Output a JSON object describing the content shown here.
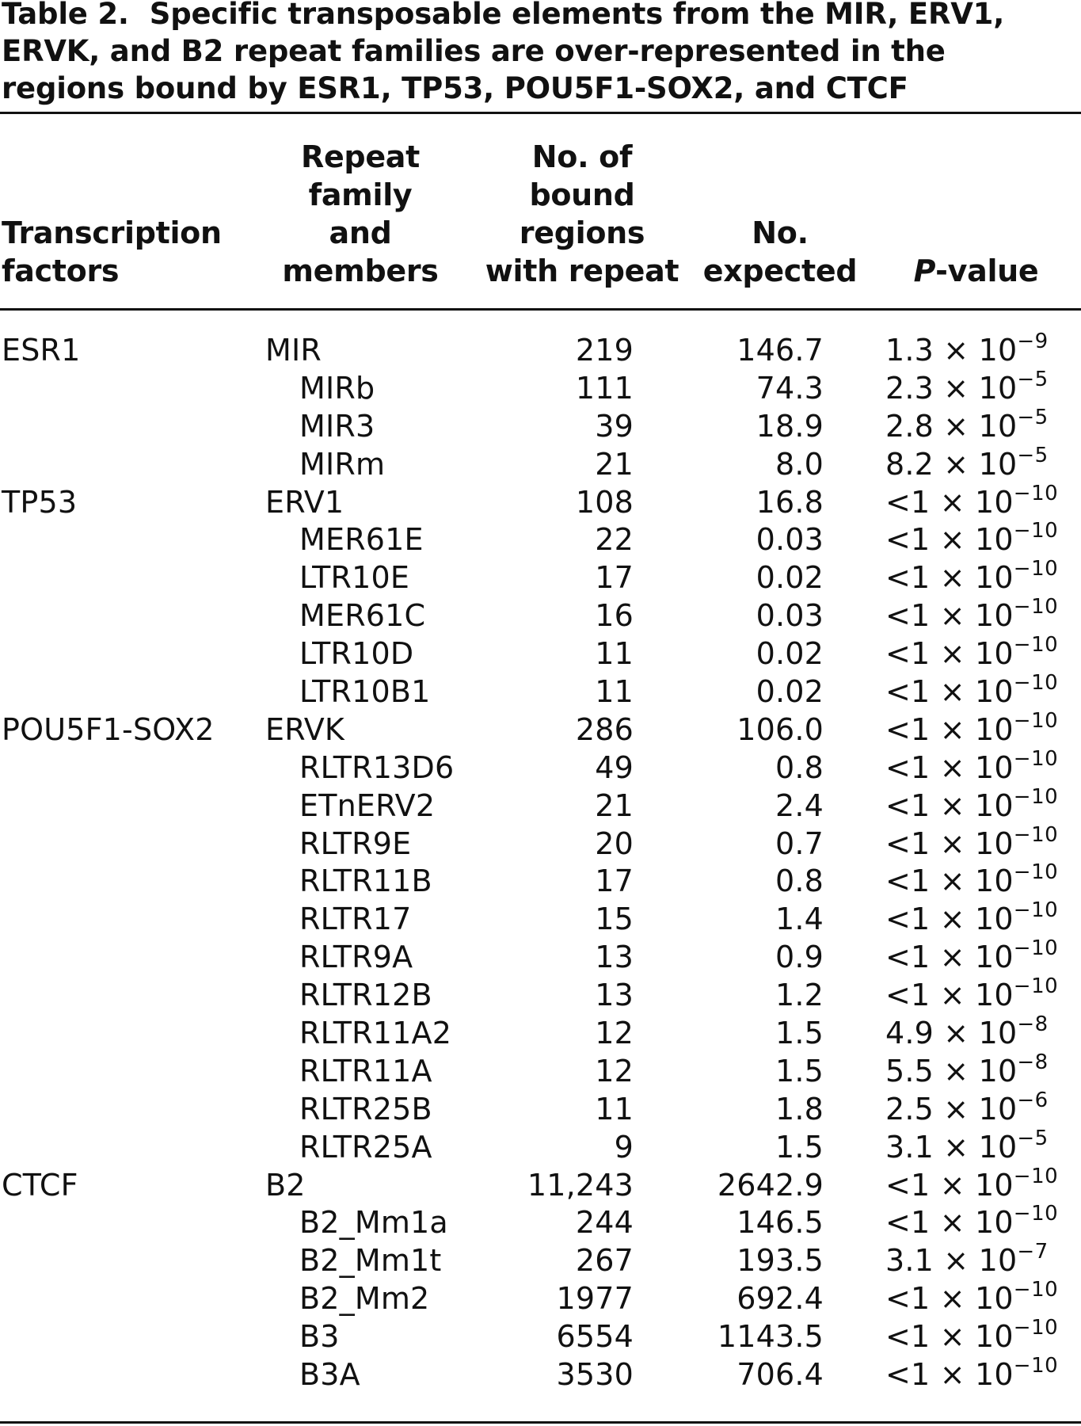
{
  "caption": {
    "label": "Table 2.",
    "text": "Specific transposable elements from the MIR, ERV1, ERVK, and B2 repeat families are over-represented in the regions bound by ESR1, TP53, POU5F1-SOX2, and CTCF"
  },
  "headers": {
    "tf_line1": "Transcription",
    "tf_line2": "factors",
    "fam_line1": "Repeat",
    "fam_line2": "family",
    "fam_line3": "and",
    "fam_line4": "members",
    "n_line1": "No. of",
    "n_line2": "bound",
    "n_line3": "regions",
    "n_line4": "with repeat",
    "exp_line1": "No.",
    "exp_line2": "expected",
    "p_italic": "P",
    "p_rest": "-value"
  },
  "rows": [
    {
      "tf": "ESR1",
      "family": "MIR",
      "member": false,
      "bound": "219",
      "expected": "146.7",
      "p_mant": "1.3 × 10",
      "p_exp": "−9"
    },
    {
      "tf": "",
      "family": "MIRb",
      "member": true,
      "bound": "111",
      "expected": "74.3",
      "p_mant": "2.3 × 10",
      "p_exp": "−5"
    },
    {
      "tf": "",
      "family": "MIR3",
      "member": true,
      "bound": "39",
      "expected": "18.9",
      "p_mant": "2.8 × 10",
      "p_exp": "−5"
    },
    {
      "tf": "",
      "family": "MIRm",
      "member": true,
      "bound": "21",
      "expected": "8.0",
      "p_mant": "8.2 × 10",
      "p_exp": "−5"
    },
    {
      "tf": "TP53",
      "family": "ERV1",
      "member": false,
      "bound": "108",
      "expected": "16.8",
      "p_mant": "<1 × 10",
      "p_exp": "−10"
    },
    {
      "tf": "",
      "family": "MER61E",
      "member": true,
      "bound": "22",
      "expected": "0.03",
      "p_mant": "<1 × 10",
      "p_exp": "−10"
    },
    {
      "tf": "",
      "family": "LTR10E",
      "member": true,
      "bound": "17",
      "expected": "0.02",
      "p_mant": "<1 × 10",
      "p_exp": "−10"
    },
    {
      "tf": "",
      "family": "MER61C",
      "member": true,
      "bound": "16",
      "expected": "0.03",
      "p_mant": "<1 × 10",
      "p_exp": "−10"
    },
    {
      "tf": "",
      "family": "LTR10D",
      "member": true,
      "bound": "11",
      "expected": "0.02",
      "p_mant": "<1 × 10",
      "p_exp": "−10"
    },
    {
      "tf": "",
      "family": "LTR10B1",
      "member": true,
      "bound": "11",
      "expected": "0.02",
      "p_mant": "<1 × 10",
      "p_exp": "−10"
    },
    {
      "tf": "POU5F1-SOX2",
      "family": "ERVK",
      "member": false,
      "bound": "286",
      "expected": "106.0",
      "p_mant": "<1 × 10",
      "p_exp": "−10"
    },
    {
      "tf": "",
      "family": "RLTR13D6",
      "member": true,
      "bound": "49",
      "expected": "0.8",
      "p_mant": "<1 × 10",
      "p_exp": "−10"
    },
    {
      "tf": "",
      "family": "ETnERV2",
      "member": true,
      "bound": "21",
      "expected": "2.4",
      "p_mant": "<1 × 10",
      "p_exp": "−10"
    },
    {
      "tf": "",
      "family": "RLTR9E",
      "member": true,
      "bound": "20",
      "expected": "0.7",
      "p_mant": "<1 × 10",
      "p_exp": "−10"
    },
    {
      "tf": "",
      "family": "RLTR11B",
      "member": true,
      "bound": "17",
      "expected": "0.8",
      "p_mant": "<1 × 10",
      "p_exp": "−10"
    },
    {
      "tf": "",
      "family": "RLTR17",
      "member": true,
      "bound": "15",
      "expected": "1.4",
      "p_mant": "<1 × 10",
      "p_exp": "−10"
    },
    {
      "tf": "",
      "family": "RLTR9A",
      "member": true,
      "bound": "13",
      "expected": "0.9",
      "p_mant": "<1 × 10",
      "p_exp": "−10"
    },
    {
      "tf": "",
      "family": "RLTR12B",
      "member": true,
      "bound": "13",
      "expected": "1.2",
      "p_mant": "<1 × 10",
      "p_exp": "−10"
    },
    {
      "tf": "",
      "family": "RLTR11A2",
      "member": true,
      "bound": "12",
      "expected": "1.5",
      "p_mant": "4.9 × 10",
      "p_exp": "−8"
    },
    {
      "tf": "",
      "family": "RLTR11A",
      "member": true,
      "bound": "12",
      "expected": "1.5",
      "p_mant": "5.5 × 10",
      "p_exp": "−8"
    },
    {
      "tf": "",
      "family": "RLTR25B",
      "member": true,
      "bound": "11",
      "expected": "1.8",
      "p_mant": "2.5 × 10",
      "p_exp": "−6"
    },
    {
      "tf": "",
      "family": "RLTR25A",
      "member": true,
      "bound": "9",
      "expected": "1.5",
      "p_mant": "3.1 × 10",
      "p_exp": "−5"
    },
    {
      "tf": "CTCF",
      "family": "B2",
      "member": false,
      "bound": "11,243",
      "expected": "2642.9",
      "p_mant": "<1 × 10",
      "p_exp": "−10"
    },
    {
      "tf": "",
      "family": "B2_Mm1a",
      "member": true,
      "bound": "244",
      "expected": "146.5",
      "p_mant": "<1 × 10",
      "p_exp": "−10"
    },
    {
      "tf": "",
      "family": "B2_Mm1t",
      "member": true,
      "bound": "267",
      "expected": "193.5",
      "p_mant": "3.1 × 10",
      "p_exp": "−7"
    },
    {
      "tf": "",
      "family": "B2_Mm2",
      "member": true,
      "bound": "1977",
      "expected": "692.4",
      "p_mant": "<1 × 10",
      "p_exp": "−10"
    },
    {
      "tf": "",
      "family": "B3",
      "member": true,
      "bound": "6554",
      "expected": "1143.5",
      "p_mant": "<1 × 10",
      "p_exp": "−10"
    },
    {
      "tf": "",
      "family": "B3A",
      "member": true,
      "bound": "3530",
      "expected": "706.4",
      "p_mant": "<1 × 10",
      "p_exp": "−10"
    }
  ]
}
